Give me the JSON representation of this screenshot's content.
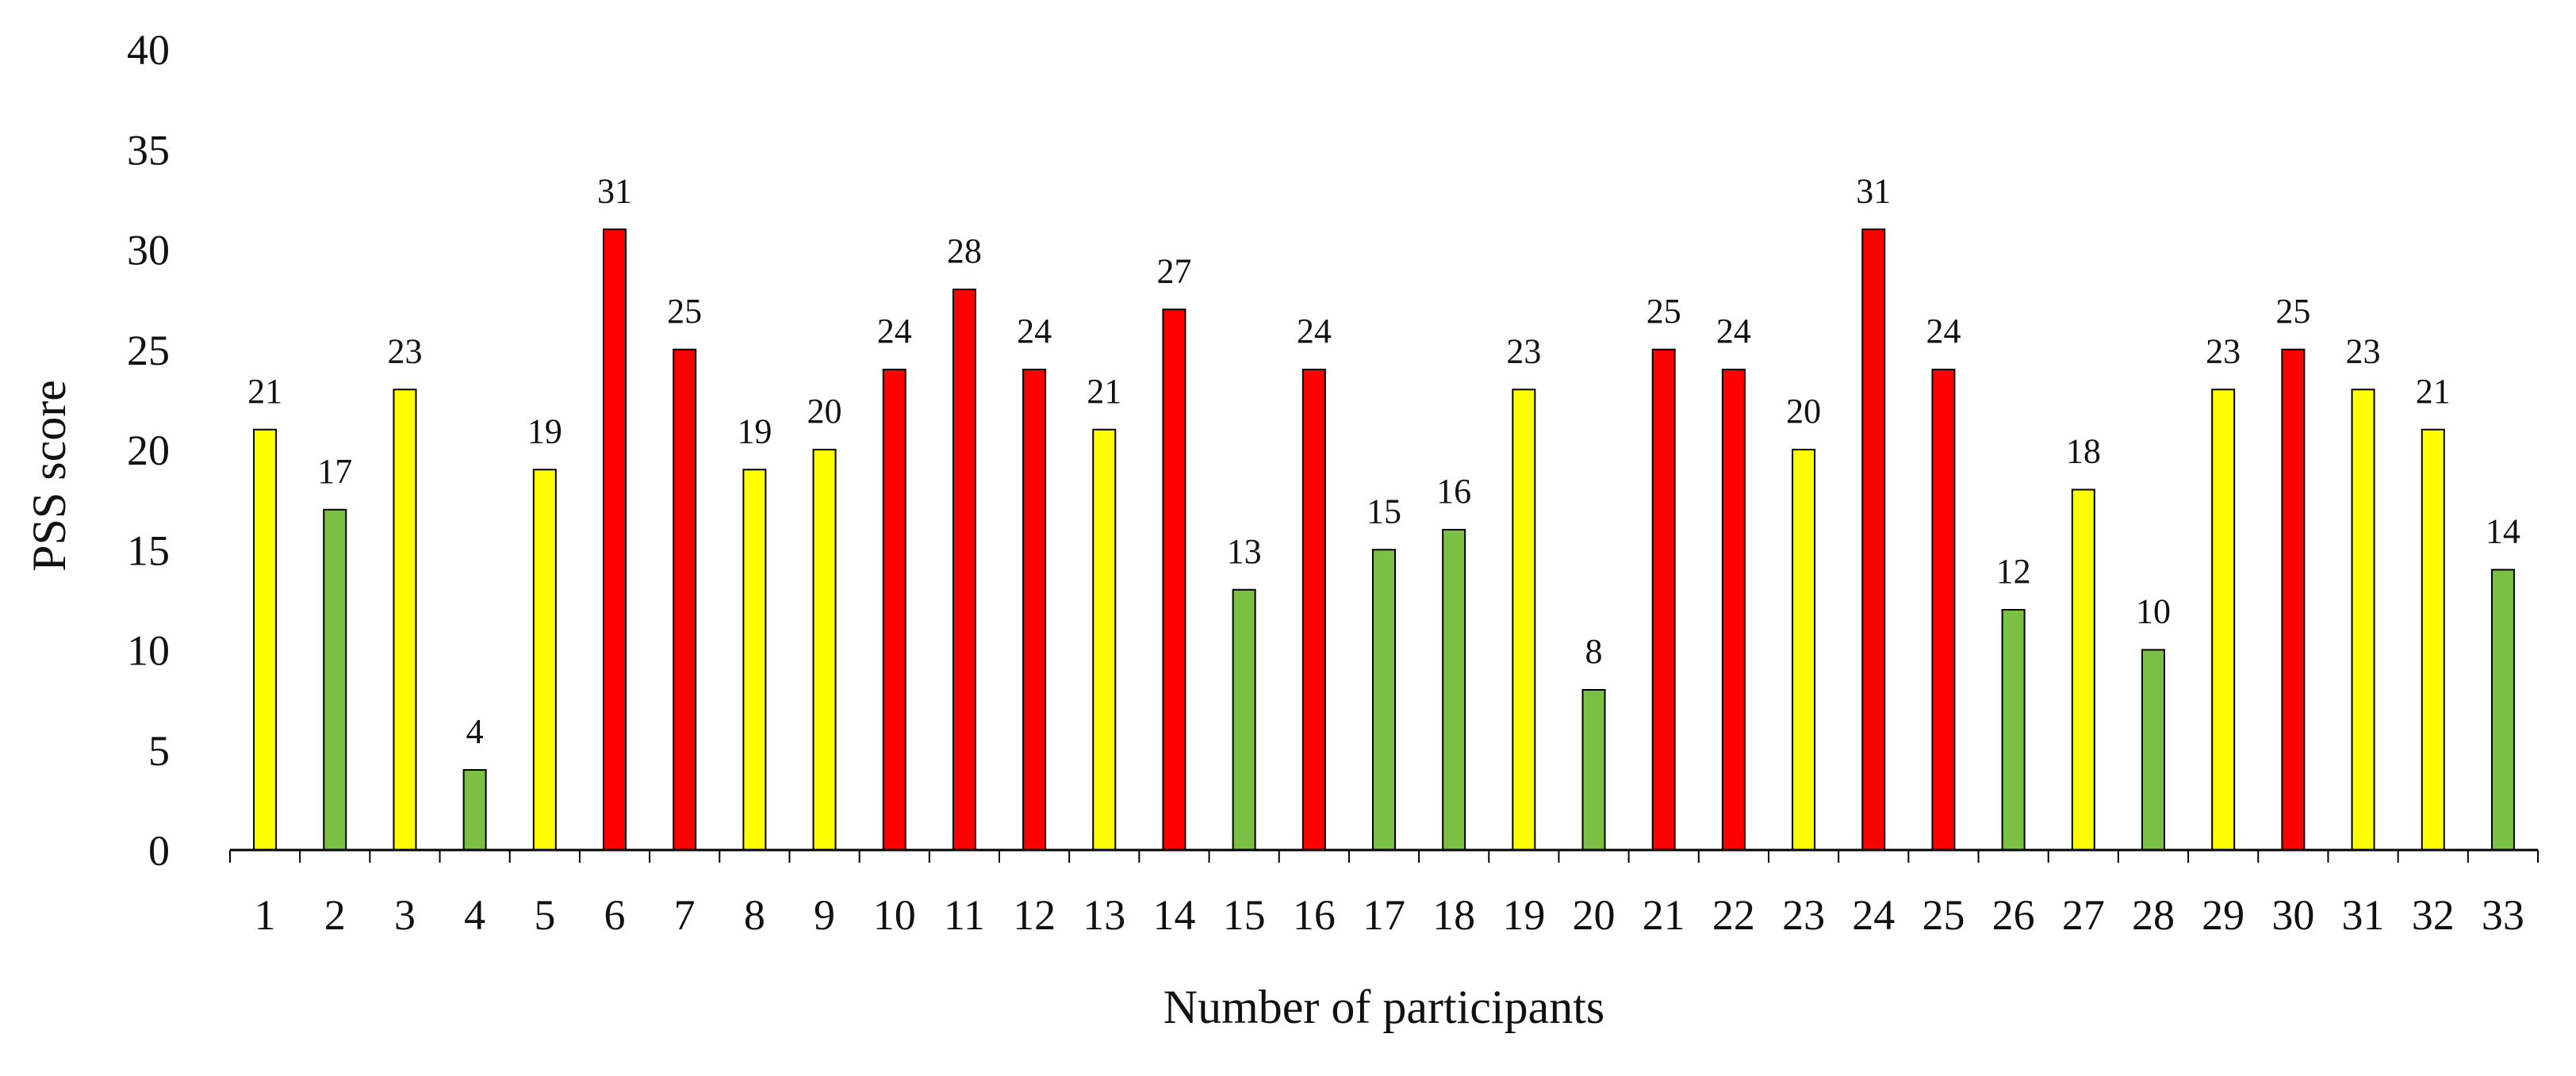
{
  "chart_data": {
    "type": "bar",
    "xlabel": "Number of participants",
    "ylabel": "PSS score",
    "ylim": [
      0,
      40
    ],
    "yticks": [
      0,
      5,
      10,
      15,
      20,
      25,
      30,
      35,
      40
    ],
    "grid": false,
    "legend": "none",
    "categories": [
      "1",
      "2",
      "3",
      "4",
      "5",
      "6",
      "7",
      "8",
      "9",
      "10",
      "11",
      "12",
      "13",
      "14",
      "15",
      "16",
      "17",
      "18",
      "19",
      "20",
      "21",
      "22",
      "23",
      "24",
      "25",
      "26",
      "27",
      "28",
      "29",
      "30",
      "31",
      "32",
      "33"
    ],
    "values": [
      21,
      17,
      23,
      4,
      19,
      31,
      25,
      19,
      20,
      24,
      28,
      24,
      21,
      27,
      13,
      24,
      15,
      16,
      23,
      8,
      25,
      24,
      20,
      31,
      24,
      12,
      18,
      10,
      23,
      25,
      23,
      21,
      14
    ],
    "data_labels": [
      "21",
      "17",
      "23",
      "4",
      "19",
      "31",
      "25",
      "19",
      "20",
      "24",
      "28",
      "24",
      "21",
      "27",
      "13",
      "24",
      "15",
      "16",
      "23",
      "8",
      "25",
      "24",
      "20",
      "31",
      "24",
      "12",
      "18",
      "10",
      "23",
      "25",
      "23",
      "21",
      "14"
    ],
    "bar_colors": [
      "#ffff00",
      "#7ac143",
      "#ffff00",
      "#7ac143",
      "#ffff00",
      "#ff0000",
      "#ff0000",
      "#ffff00",
      "#ffff00",
      "#ff0000",
      "#ff0000",
      "#ff0000",
      "#ffff00",
      "#ff0000",
      "#7ac143",
      "#ff0000",
      "#7ac143",
      "#7ac143",
      "#ffff00",
      "#7ac143",
      "#ff0000",
      "#ff0000",
      "#ffff00",
      "#ff0000",
      "#ff0000",
      "#7ac143",
      "#ffff00",
      "#7ac143",
      "#ffff00",
      "#ff0000",
      "#ffff00",
      "#ffff00",
      "#7ac143"
    ],
    "colors": {
      "red": "#ff0000",
      "yellow": "#ffff00",
      "green": "#7ac143",
      "outline": "#000000",
      "axis": "#000000"
    }
  }
}
